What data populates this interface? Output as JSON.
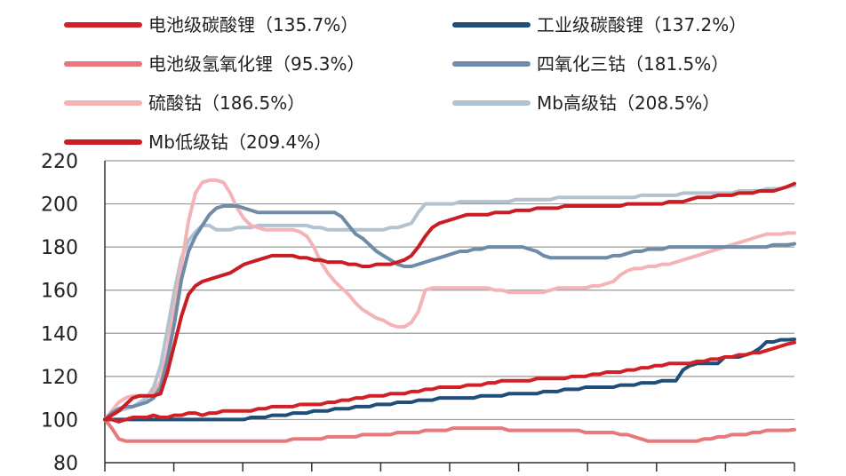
{
  "chart_data": {
    "type": "line",
    "title": "",
    "xlabel": "",
    "ylabel": "",
    "ylim": [
      80,
      220
    ],
    "y_ticks": [
      80,
      100,
      120,
      140,
      160,
      180,
      200,
      220
    ],
    "x_count": 100,
    "grid": "horizontal",
    "legend_position": "top",
    "series": [
      {
        "name": "电池级碳酸锂（135.7%）",
        "color": "#d32027",
        "values": [
          100,
          100,
          99,
          100,
          101,
          101,
          101,
          102,
          101,
          101,
          102,
          102,
          103,
          103,
          102,
          103,
          103,
          104,
          104,
          104,
          104,
          104,
          105,
          105,
          106,
          106,
          106,
          106,
          107,
          107,
          107,
          107,
          108,
          108,
          109,
          109,
          110,
          110,
          111,
          111,
          111,
          112,
          112,
          112,
          113,
          113,
          114,
          114,
          115,
          115,
          115,
          115,
          116,
          116,
          116,
          117,
          117,
          118,
          118,
          118,
          118,
          118,
          119,
          119,
          119,
          119,
          119,
          120,
          120,
          120,
          121,
          121,
          122,
          122,
          122,
          123,
          123,
          124,
          124,
          125,
          125,
          126,
          126,
          126,
          126,
          127,
          127,
          128,
          128,
          129,
          129,
          130,
          130,
          131,
          131,
          132,
          133,
          134,
          135,
          135.7
        ]
      },
      {
        "name": "工业级碳酸锂（137.2%）",
        "color": "#1f4e79",
        "values": [
          100,
          100,
          100,
          100,
          100,
          100,
          100,
          100,
          100,
          100,
          100,
          100,
          100,
          100,
          100,
          100,
          100,
          100,
          100,
          100,
          100,
          101,
          101,
          101,
          102,
          102,
          102,
          103,
          103,
          103,
          104,
          104,
          104,
          105,
          105,
          105,
          106,
          106,
          106,
          107,
          107,
          107,
          108,
          108,
          108,
          109,
          109,
          109,
          110,
          110,
          110,
          110,
          110,
          110,
          111,
          111,
          111,
          111,
          112,
          112,
          112,
          112,
          112,
          113,
          113,
          113,
          114,
          114,
          114,
          115,
          115,
          115,
          115,
          115,
          116,
          116,
          116,
          117,
          117,
          117,
          118,
          118,
          118,
          123,
          125,
          126,
          126,
          126,
          126,
          129,
          129,
          129,
          130,
          131,
          133,
          136,
          136,
          137,
          137,
          137.2
        ]
      },
      {
        "name": "电池级氢氧化锂（95.3%）",
        "color": "#e8787a",
        "values": [
          100,
          96,
          91,
          90,
          90,
          90,
          90,
          90,
          90,
          90,
          90,
          90,
          90,
          90,
          90,
          90,
          90,
          90,
          90,
          90,
          90,
          90,
          90,
          90,
          90,
          90,
          90,
          91,
          91,
          91,
          91,
          91,
          92,
          92,
          92,
          92,
          92,
          93,
          93,
          93,
          93,
          93,
          94,
          94,
          94,
          94,
          95,
          95,
          95,
          95,
          96,
          96,
          96,
          96,
          96,
          96,
          96,
          96,
          95,
          95,
          95,
          95,
          95,
          95,
          95,
          95,
          95,
          95,
          95,
          94,
          94,
          94,
          94,
          94,
          93,
          93,
          92,
          91,
          90,
          90,
          90,
          90,
          90,
          90,
          90,
          90,
          91,
          91,
          92,
          92,
          93,
          93,
          93,
          94,
          94,
          95,
          95,
          95,
          95,
          95.3
        ]
      },
      {
        "name": "四氧化三钴（181.5%）",
        "color": "#6e8ba8",
        "values": [
          100,
          103,
          105,
          106,
          106,
          107,
          108,
          110,
          115,
          128,
          145,
          165,
          178,
          185,
          190,
          195,
          198,
          199,
          199,
          199,
          198,
          197,
          196,
          196,
          196,
          196,
          196,
          196,
          196,
          196,
          196,
          196,
          196,
          196,
          194,
          190,
          186,
          184,
          181,
          178,
          176,
          174,
          172,
          171,
          171,
          172,
          173,
          174,
          175,
          176,
          177,
          178,
          178,
          179,
          179,
          180,
          180,
          180,
          180,
          180,
          180,
          179,
          178,
          176,
          175,
          175,
          175,
          175,
          175,
          175,
          175,
          175,
          175,
          176,
          176,
          177,
          178,
          178,
          179,
          179,
          179,
          180,
          180,
          180,
          180,
          180,
          180,
          180,
          180,
          180,
          180,
          180,
          180,
          180,
          180,
          180,
          181,
          181,
          181,
          181.5
        ]
      },
      {
        "name": "硫酸钴（186.5%）",
        "color": "#f4b4b6",
        "values": [
          100,
          104,
          108,
          110,
          111,
          111,
          111,
          112,
          118,
          132,
          152,
          172,
          192,
          205,
          210,
          211,
          211,
          210,
          205,
          198,
          193,
          190,
          189,
          188,
          188,
          188,
          188,
          188,
          187,
          185,
          180,
          173,
          168,
          164,
          161,
          158,
          154,
          151,
          149,
          147,
          146,
          144,
          143,
          143,
          145,
          150,
          160,
          161,
          161,
          161,
          161,
          161,
          161,
          161,
          161,
          161,
          160,
          160,
          159,
          159,
          159,
          159,
          159,
          159,
          160,
          161,
          161,
          161,
          161,
          161,
          162,
          162,
          163,
          164,
          167,
          169,
          170,
          170,
          171,
          171,
          172,
          172,
          173,
          174,
          175,
          176,
          177,
          178,
          179,
          180,
          181,
          182,
          183,
          184,
          185,
          186,
          186,
          186,
          186.5,
          186.5
        ]
      },
      {
        "name": "Mb高级钴（208.5%）",
        "color": "#b3c2d1",
        "values": [
          100,
          102,
          104,
          105,
          106,
          108,
          110,
          115,
          125,
          142,
          160,
          175,
          183,
          187,
          190,
          190,
          188,
          188,
          188,
          189,
          189,
          189,
          190,
          190,
          190,
          190,
          190,
          190,
          190,
          190,
          189,
          189,
          188,
          188,
          188,
          188,
          188,
          188,
          188,
          188,
          188,
          189,
          189,
          190,
          191,
          196,
          200,
          200,
          200,
          200,
          200,
          201,
          201,
          201,
          201,
          201,
          201,
          201,
          201,
          202,
          202,
          202,
          202,
          202,
          202,
          203,
          203,
          203,
          203,
          203,
          203,
          203,
          203,
          203,
          203,
          203,
          203,
          204,
          204,
          204,
          204,
          204,
          204,
          205,
          205,
          205,
          205,
          205,
          205,
          205,
          205,
          206,
          206,
          206,
          206,
          207,
          207,
          207,
          208,
          208.5
        ]
      },
      {
        "name": "Mb低级钴（209.4%）",
        "color": "#c81e23",
        "values": [
          100,
          102,
          104,
          107,
          110,
          111,
          111,
          111,
          112,
          122,
          135,
          148,
          158,
          162,
          164,
          165,
          166,
          167,
          168,
          170,
          172,
          173,
          174,
          175,
          176,
          176,
          176,
          176,
          175,
          175,
          174,
          174,
          173,
          173,
          173,
          172,
          172,
          171,
          171,
          172,
          172,
          172,
          173,
          174,
          176,
          180,
          185,
          189,
          191,
          192,
          193,
          194,
          195,
          195,
          195,
          195,
          196,
          196,
          196,
          197,
          197,
          197,
          198,
          198,
          198,
          198,
          199,
          199,
          199,
          199,
          199,
          199,
          199,
          199,
          199,
          200,
          200,
          200,
          200,
          200,
          200,
          201,
          201,
          201,
          202,
          203,
          203,
          203,
          204,
          204,
          204,
          205,
          205,
          205,
          206,
          206,
          206,
          207,
          208,
          209.4
        ]
      }
    ]
  }
}
